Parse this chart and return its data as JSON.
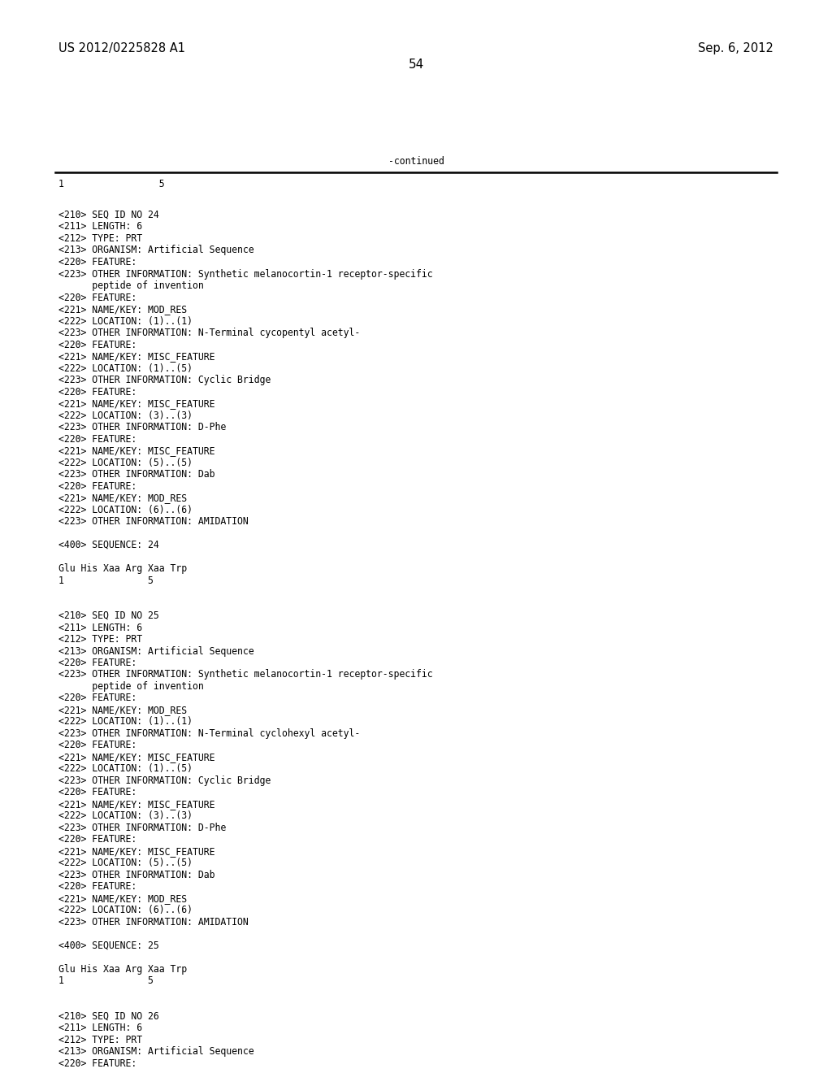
{
  "background_color": "#ffffff",
  "header_left": "US 2012/0225828 A1",
  "header_right": "Sep. 6, 2012",
  "page_number": "54",
  "continued_label": "-continued",
  "content": [
    "<210> SEQ ID NO 24",
    "<211> LENGTH: 6",
    "<212> TYPE: PRT",
    "<213> ORGANISM: Artificial Sequence",
    "<220> FEATURE:",
    "<223> OTHER INFORMATION: Synthetic melanocortin-1 receptor-specific",
    "      peptide of invention",
    "<220> FEATURE:",
    "<221> NAME/KEY: MOD_RES",
    "<222> LOCATION: (1)..(1)",
    "<223> OTHER INFORMATION: N-Terminal cycopentyl acetyl-",
    "<220> FEATURE:",
    "<221> NAME/KEY: MISC_FEATURE",
    "<222> LOCATION: (1)..(5)",
    "<223> OTHER INFORMATION: Cyclic Bridge",
    "<220> FEATURE:",
    "<221> NAME/KEY: MISC_FEATURE",
    "<222> LOCATION: (3)..(3)",
    "<223> OTHER INFORMATION: D-Phe",
    "<220> FEATURE:",
    "<221> NAME/KEY: MISC_FEATURE",
    "<222> LOCATION: (5)..(5)",
    "<223> OTHER INFORMATION: Dab",
    "<220> FEATURE:",
    "<221> NAME/KEY: MOD_RES",
    "<222> LOCATION: (6)..(6)",
    "<223> OTHER INFORMATION: AMIDATION",
    "",
    "<400> SEQUENCE: 24",
    "",
    "Glu His Xaa Arg Xaa Trp",
    "1               5",
    "",
    "",
    "<210> SEQ ID NO 25",
    "<211> LENGTH: 6",
    "<212> TYPE: PRT",
    "<213> ORGANISM: Artificial Sequence",
    "<220> FEATURE:",
    "<223> OTHER INFORMATION: Synthetic melanocortin-1 receptor-specific",
    "      peptide of invention",
    "<220> FEATURE:",
    "<221> NAME/KEY: MOD_RES",
    "<222> LOCATION: (1)..(1)",
    "<223> OTHER INFORMATION: N-Terminal cyclohexyl acetyl-",
    "<220> FEATURE:",
    "<221> NAME/KEY: MISC_FEATURE",
    "<222> LOCATION: (1)..(5)",
    "<223> OTHER INFORMATION: Cyclic Bridge",
    "<220> FEATURE:",
    "<221> NAME/KEY: MISC_FEATURE",
    "<222> LOCATION: (3)..(3)",
    "<223> OTHER INFORMATION: D-Phe",
    "<220> FEATURE:",
    "<221> NAME/KEY: MISC_FEATURE",
    "<222> LOCATION: (5)..(5)",
    "<223> OTHER INFORMATION: Dab",
    "<220> FEATURE:",
    "<221> NAME/KEY: MOD_RES",
    "<222> LOCATION: (6)..(6)",
    "<223> OTHER INFORMATION: AMIDATION",
    "",
    "<400> SEQUENCE: 25",
    "",
    "Glu His Xaa Arg Xaa Trp",
    "1               5",
    "",
    "",
    "<210> SEQ ID NO 26",
    "<211> LENGTH: 6",
    "<212> TYPE: PRT",
    "<213> ORGANISM: Artificial Sequence",
    "<220> FEATURE:"
  ],
  "font_size": 8.3,
  "mono_font": "DejaVu Sans Mono",
  "header_font_size": 10.5,
  "page_num_font_size": 11
}
